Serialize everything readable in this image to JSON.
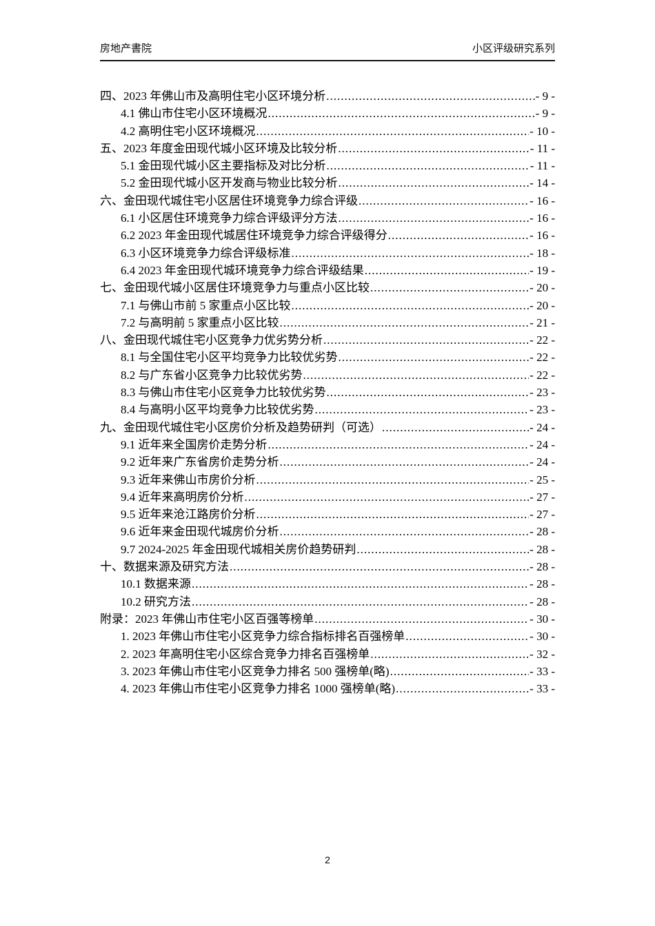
{
  "header": {
    "left": "房地产書院",
    "right": "小区评级研究系列"
  },
  "toc": {
    "entries": [
      {
        "label": "四、2023 年佛山市及高明住宅小区环境分析",
        "page": "- 9 -",
        "level": 0
      },
      {
        "label": "4.1 佛山市住宅小区环境概况",
        "page": "- 9 -",
        "level": 1
      },
      {
        "label": "4.2 高明住宅小区环境概况",
        "page": "- 10 -",
        "level": 1
      },
      {
        "label": "五、2023 年度金田现代城小区环境及比较分析",
        "page": "- 11 -",
        "level": 0
      },
      {
        "label": "5.1 金田现代城小区主要指标及对比分析",
        "page": "- 11 -",
        "level": 1
      },
      {
        "label": "5.2 金田现代城小区开发商与物业比较分析",
        "page": "- 14 -",
        "level": 1
      },
      {
        "label": "六、金田现代城住宅小区居住环境竞争力综合评级",
        "page": "- 16 -",
        "level": 0
      },
      {
        "label": "6.1 小区居住环境竞争力综合评级评分方法",
        "page": "- 16 -",
        "level": 1
      },
      {
        "label": "6.2 2023 年金田现代城居住环境竞争力综合评级得分",
        "page": "- 16 -",
        "level": 1
      },
      {
        "label": "6.3 小区环境竞争力综合评级标准",
        "page": "- 18 -",
        "level": 1
      },
      {
        "label": "6.4 2023 年金田现代城环境竞争力综合评级结果",
        "page": "- 19 -",
        "level": 1
      },
      {
        "label": "七、金田现代城小区居住环境竞争力与重点小区比较",
        "page": "- 20 -",
        "level": 0
      },
      {
        "label": "7.1 与佛山市前 5 家重点小区比较",
        "page": "- 20 -",
        "level": 1
      },
      {
        "label": "7.2 与高明前 5 家重点小区比较",
        "page": "- 21 -",
        "level": 1
      },
      {
        "label": "八、金田现代城住宅小区竞争力优劣势分析",
        "page": "- 22 -",
        "level": 0
      },
      {
        "label": "8.1 与全国住宅小区平均竞争力比较优劣势",
        "page": "- 22 -",
        "level": 1
      },
      {
        "label": "8.2 与广东省小区竞争力比较优劣势",
        "page": "- 22 -",
        "level": 1
      },
      {
        "label": "8.3 与佛山市住宅小区竞争力比较优劣势",
        "page": "- 23 -",
        "level": 1
      },
      {
        "label": "8.4 与高明小区平均竞争力比较优劣势",
        "page": "- 23 -",
        "level": 1
      },
      {
        "label": "九、金田现代城住宅小区房价分析及趋势研判（可选）",
        "page": "- 24 -",
        "level": 0
      },
      {
        "label": "9.1 近年来全国房价走势分析",
        "page": "- 24 -",
        "level": 1
      },
      {
        "label": "9.2 近年来广东省房价走势分析",
        "page": "- 24 -",
        "level": 1
      },
      {
        "label": "9.3 近年来佛山市房价分析",
        "page": "- 25 -",
        "level": 1
      },
      {
        "label": "9.4 近年来高明房价分析",
        "page": "- 27 -",
        "level": 1
      },
      {
        "label": "9.5 近年来沧江路房价分析",
        "page": "- 27 -",
        "level": 1
      },
      {
        "label": "9.6 近年来金田现代城房价分析",
        "page": "- 28 -",
        "level": 1
      },
      {
        "label": "9.7 2024-2025 年金田现代城相关房价趋势研判",
        "page": "- 28 -",
        "level": 1
      },
      {
        "label": "十、数据来源及研究方法",
        "page": "- 28 -",
        "level": 0
      },
      {
        "label": "10.1 数据来源",
        "page": "- 28 -",
        "level": 1
      },
      {
        "label": "10.2 研究方法",
        "page": "- 28 -",
        "level": 1
      },
      {
        "label": "附录：2023 年佛山市住宅小区百强等榜单",
        "page": "- 30 -",
        "level": 0
      },
      {
        "label": "1. 2023 年佛山市住宅小区竞争力综合指标排名百强榜单",
        "page": "- 30 -",
        "level": 1
      },
      {
        "label": "2. 2023 年高明住宅小区综合竞争力排名百强榜单",
        "page": "- 32 -",
        "level": 1
      },
      {
        "label": "3. 2023 年佛山市住宅小区竞争力排名 500 强榜单(略)",
        "page": "- 33 -",
        "level": 1
      },
      {
        "label": "4. 2023 年佛山市住宅小区竞争力排名 1000 强榜单(略)",
        "page": "- 33 -",
        "level": 1
      }
    ]
  },
  "footer": {
    "page_number": "2"
  }
}
